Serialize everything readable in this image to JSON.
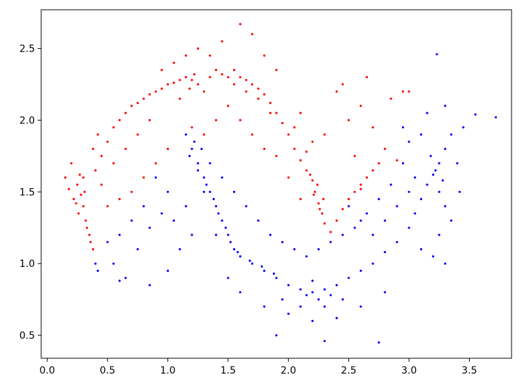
{
  "chart_data": {
    "type": "scatter",
    "title": "",
    "xlabel": "",
    "ylabel": "",
    "xlim": [
      -0.05,
      3.85
    ],
    "ylim": [
      0.34,
      2.77
    ],
    "grid": false,
    "x_ticks": [
      {
        "value": 0.0,
        "label": "0.0"
      },
      {
        "value": 0.5,
        "label": "0.5"
      },
      {
        "value": 1.0,
        "label": "1.0"
      },
      {
        "value": 1.5,
        "label": "1.5"
      },
      {
        "value": 2.0,
        "label": "2.0"
      },
      {
        "value": 2.5,
        "label": "2.5"
      },
      {
        "value": 3.0,
        "label": "3.0"
      },
      {
        "value": 3.5,
        "label": "3.5"
      }
    ],
    "y_ticks": [
      {
        "value": 0.5,
        "label": "0.5"
      },
      {
        "value": 1.0,
        "label": "1.0"
      },
      {
        "value": 1.5,
        "label": "1.5"
      },
      {
        "value": 2.0,
        "label": "2.0"
      },
      {
        "value": 2.5,
        "label": "2.5"
      }
    ],
    "series": [
      {
        "color": "#ff0000",
        "points": [
          [
            0.2,
            1.7
          ],
          [
            0.25,
            1.55
          ],
          [
            0.28,
            1.48
          ],
          [
            0.3,
            1.4
          ],
          [
            0.32,
            1.3
          ],
          [
            0.35,
            1.2
          ],
          [
            0.38,
            1.1
          ],
          [
            0.3,
            1.6
          ],
          [
            0.22,
            1.45
          ],
          [
            0.4,
            1.65
          ],
          [
            0.45,
            1.75
          ],
          [
            0.5,
            1.85
          ],
          [
            0.55,
            1.95
          ],
          [
            0.6,
            2.0
          ],
          [
            0.65,
            2.05
          ],
          [
            0.7,
            2.1
          ],
          [
            0.75,
            2.12
          ],
          [
            0.8,
            2.15
          ],
          [
            0.85,
            2.18
          ],
          [
            0.9,
            2.2
          ],
          [
            0.95,
            2.22
          ],
          [
            1.0,
            2.25
          ],
          [
            1.05,
            2.26
          ],
          [
            1.1,
            2.28
          ],
          [
            1.15,
            2.3
          ],
          [
            1.2,
            2.28
          ],
          [
            1.25,
            2.25
          ],
          [
            1.3,
            2.2
          ],
          [
            1.35,
            2.3
          ],
          [
            1.4,
            2.35
          ],
          [
            1.45,
            2.32
          ],
          [
            1.5,
            2.3
          ],
          [
            1.55,
            2.35
          ],
          [
            1.6,
            2.3
          ],
          [
            1.65,
            2.28
          ],
          [
            1.7,
            2.25
          ],
          [
            1.75,
            2.22
          ],
          [
            1.8,
            2.18
          ],
          [
            1.85,
            2.12
          ],
          [
            1.9,
            2.05
          ],
          [
            1.95,
            1.98
          ],
          [
            2.0,
            1.9
          ],
          [
            2.05,
            1.8
          ],
          [
            2.1,
            1.72
          ],
          [
            2.15,
            1.65
          ],
          [
            2.2,
            1.58
          ],
          [
            2.22,
            1.5
          ],
          [
            2.25,
            1.42
          ],
          [
            2.28,
            1.35
          ],
          [
            2.3,
            1.28
          ],
          [
            2.35,
            1.22
          ],
          [
            2.4,
            1.3
          ],
          [
            2.45,
            1.38
          ],
          [
            2.5,
            1.45
          ],
          [
            2.55,
            1.5
          ],
          [
            2.6,
            1.55
          ],
          [
            2.65,
            1.6
          ],
          [
            2.7,
            1.65
          ],
          [
            2.75,
            1.7
          ],
          [
            2.8,
            1.8
          ],
          [
            2.5,
            2.0
          ],
          [
            2.6,
            2.1
          ],
          [
            2.4,
            2.2
          ],
          [
            2.3,
            1.9
          ],
          [
            2.7,
            1.95
          ],
          [
            2.55,
            1.75
          ],
          [
            2.2,
            1.85
          ],
          [
            2.1,
            2.05
          ],
          [
            2.85,
            2.15
          ],
          [
            2.95,
            2.2
          ],
          [
            1.2,
            1.95
          ],
          [
            1.3,
            1.9
          ],
          [
            1.4,
            2.0
          ],
          [
            1.5,
            2.1
          ],
          [
            1.6,
            2.0
          ],
          [
            1.7,
            1.9
          ],
          [
            1.8,
            1.8
          ],
          [
            1.9,
            1.75
          ],
          [
            2.0,
            1.6
          ],
          [
            2.1,
            1.45
          ],
          [
            1.0,
            1.8
          ],
          [
            0.9,
            1.7
          ],
          [
            0.8,
            1.6
          ],
          [
            0.7,
            1.5
          ],
          [
            0.6,
            1.45
          ],
          [
            0.5,
            1.4
          ],
          [
            0.45,
            1.55
          ],
          [
            0.55,
            1.7
          ],
          [
            0.75,
            1.9
          ],
          [
            0.85,
            2.0
          ],
          [
            1.15,
            2.45
          ],
          [
            1.25,
            2.5
          ],
          [
            1.45,
            2.55
          ],
          [
            1.6,
            2.67
          ],
          [
            1.7,
            2.6
          ],
          [
            1.8,
            2.45
          ],
          [
            1.9,
            2.35
          ],
          [
            1.35,
            2.45
          ],
          [
            1.05,
            2.4
          ],
          [
            0.95,
            2.35
          ],
          [
            0.15,
            1.6
          ],
          [
            0.18,
            1.52
          ],
          [
            0.26,
            1.35
          ],
          [
            0.33,
            1.25
          ],
          [
            0.36,
            1.15
          ],
          [
            0.27,
            1.62
          ],
          [
            0.31,
            1.5
          ],
          [
            0.24,
            1.42
          ],
          [
            1.18,
            2.22
          ],
          [
            1.22,
            2.32
          ],
          [
            2.24,
            1.55
          ],
          [
            2.21,
            1.48
          ],
          [
            2.26,
            1.38
          ],
          [
            2.18,
            1.62
          ],
          [
            2.29,
            1.45
          ],
          [
            2.6,
            1.52
          ],
          [
            2.9,
            1.72
          ],
          [
            3.0,
            2.2
          ],
          [
            2.45,
            2.25
          ],
          [
            2.65,
            2.3
          ],
          [
            1.65,
            2.2
          ],
          [
            1.75,
            2.15
          ],
          [
            1.85,
            2.05
          ],
          [
            1.55,
            2.25
          ],
          [
            2.05,
            1.95
          ],
          [
            2.15,
            1.78
          ],
          [
            0.65,
            1.8
          ],
          [
            0.42,
            1.9
          ],
          [
            0.38,
            1.8
          ],
          [
            1.1,
            2.15
          ]
        ]
      },
      {
        "color": "#0000ff",
        "points": [
          [
            1.15,
            1.9
          ],
          [
            1.2,
            1.8
          ],
          [
            1.25,
            1.7
          ],
          [
            1.3,
            1.6
          ],
          [
            1.35,
            1.5
          ],
          [
            1.4,
            1.4
          ],
          [
            1.45,
            1.3
          ],
          [
            1.5,
            1.2
          ],
          [
            1.55,
            1.1
          ],
          [
            1.6,
            1.05
          ],
          [
            1.7,
            1.0
          ],
          [
            1.8,
            0.95
          ],
          [
            1.9,
            0.9
          ],
          [
            2.0,
            0.85
          ],
          [
            2.1,
            0.82
          ],
          [
            2.2,
            0.8
          ],
          [
            2.3,
            0.82
          ],
          [
            2.4,
            0.85
          ],
          [
            2.5,
            0.9
          ],
          [
            2.6,
            0.95
          ],
          [
            2.7,
            1.0
          ],
          [
            2.8,
            1.08
          ],
          [
            2.9,
            1.15
          ],
          [
            3.0,
            1.25
          ],
          [
            3.05,
            1.35
          ],
          [
            3.1,
            1.45
          ],
          [
            3.15,
            1.55
          ],
          [
            3.2,
            1.62
          ],
          [
            3.25,
            1.7
          ],
          [
            3.3,
            1.8
          ],
          [
            3.22,
            1.65
          ],
          [
            3.28,
            1.58
          ],
          [
            3.18,
            1.75
          ],
          [
            3.25,
            1.5
          ],
          [
            3.3,
            1.4
          ],
          [
            3.35,
            1.9
          ],
          [
            3.1,
            1.9
          ],
          [
            3.0,
            1.85
          ],
          [
            2.95,
            1.7
          ],
          [
            2.85,
            1.55
          ],
          [
            2.75,
            1.45
          ],
          [
            2.65,
            1.35
          ],
          [
            2.55,
            1.25
          ],
          [
            2.45,
            1.2
          ],
          [
            2.35,
            1.15
          ],
          [
            2.25,
            1.1
          ],
          [
            2.15,
            1.05
          ],
          [
            2.05,
            1.1
          ],
          [
            1.95,
            1.15
          ],
          [
            1.85,
            1.2
          ],
          [
            1.75,
            1.3
          ],
          [
            1.65,
            1.4
          ],
          [
            1.55,
            1.5
          ],
          [
            1.45,
            1.6
          ],
          [
            1.35,
            1.7
          ],
          [
            1.28,
            1.8
          ],
          [
            1.22,
            1.85
          ],
          [
            1.18,
            1.75
          ],
          [
            1.3,
            1.5
          ],
          [
            1.4,
            1.2
          ],
          [
            0.9,
            1.6
          ],
          [
            1.0,
            1.5
          ],
          [
            0.8,
            1.4
          ],
          [
            0.7,
            1.3
          ],
          [
            0.6,
            1.2
          ],
          [
            0.5,
            1.15
          ],
          [
            0.55,
            1.0
          ],
          [
            0.65,
            0.9
          ],
          [
            0.85,
            0.85
          ],
          [
            1.0,
            0.95
          ],
          [
            1.1,
            1.1
          ],
          [
            1.2,
            1.2
          ],
          [
            1.5,
            0.9
          ],
          [
            1.6,
            0.8
          ],
          [
            1.8,
            0.7
          ],
          [
            2.0,
            0.65
          ],
          [
            2.2,
            0.6
          ],
          [
            2.4,
            0.62
          ],
          [
            2.6,
            0.7
          ],
          [
            2.8,
            0.8
          ],
          [
            2.25,
            0.75
          ],
          [
            2.15,
            0.78
          ],
          [
            2.35,
            0.78
          ],
          [
            2.2,
            0.88
          ],
          [
            2.3,
            0.7
          ],
          [
            2.1,
            0.7
          ],
          [
            1.95,
            0.75
          ],
          [
            2.45,
            0.75
          ],
          [
            1.9,
            0.5
          ],
          [
            2.3,
            0.46
          ],
          [
            2.75,
            0.45
          ],
          [
            3.23,
            2.46
          ],
          [
            3.72,
            2.02
          ],
          [
            3.55,
            2.04
          ],
          [
            3.45,
            1.95
          ],
          [
            3.4,
            1.7
          ],
          [
            3.42,
            1.5
          ],
          [
            3.35,
            1.3
          ],
          [
            3.25,
            1.2
          ],
          [
            3.1,
            1.1
          ],
          [
            3.2,
            1.05
          ],
          [
            3.3,
            1.0
          ],
          [
            0.4,
            1.0
          ],
          [
            0.42,
            0.95
          ],
          [
            0.6,
            0.88
          ],
          [
            0.75,
            1.1
          ],
          [
            0.85,
            1.25
          ],
          [
            0.95,
            1.35
          ],
          [
            1.05,
            1.3
          ],
          [
            1.15,
            1.4
          ],
          [
            2.5,
            1.4
          ],
          [
            2.6,
            1.3
          ],
          [
            2.7,
            1.2
          ],
          [
            2.8,
            1.3
          ],
          [
            2.9,
            1.4
          ],
          [
            3.0,
            1.5
          ],
          [
            3.05,
            1.6
          ],
          [
            2.95,
            1.95
          ],
          [
            3.15,
            2.05
          ],
          [
            3.3,
            2.1
          ],
          [
            1.25,
            1.65
          ],
          [
            1.32,
            1.55
          ],
          [
            1.38,
            1.45
          ],
          [
            1.42,
            1.35
          ],
          [
            1.48,
            1.25
          ],
          [
            1.52,
            1.15
          ],
          [
            1.58,
            1.08
          ],
          [
            1.68,
            1.02
          ],
          [
            1.78,
            0.98
          ],
          [
            1.88,
            0.93
          ]
        ]
      }
    ]
  }
}
